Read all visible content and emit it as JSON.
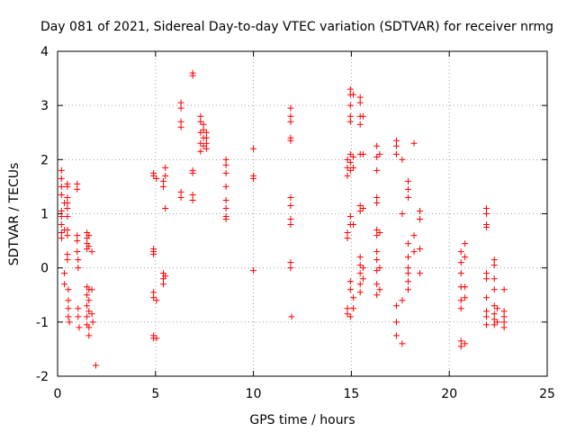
{
  "chart_data": {
    "type": "scatter",
    "title": "Day 081 of 2021, Sidereal Day-to-day VTEC variation (SDTVAR) for receiver nrmg",
    "xlabel": "GPS time / hours",
    "ylabel": "SDTVAR / TECUs",
    "xlim": [
      0,
      25
    ],
    "ylim": [
      -2,
      4
    ],
    "xticks": [
      "0",
      "5",
      "10",
      "15",
      "20",
      "25"
    ],
    "yticks": [
      "-2",
      "-1",
      "0",
      "1",
      "2",
      "3",
      "4"
    ],
    "grid": true,
    "marker": "+",
    "color": "#ff0000",
    "series": [
      {
        "name": "SDTVAR",
        "points": [
          [
            0.2,
            1.8
          ],
          [
            0.2,
            1.65
          ],
          [
            0.2,
            1.5
          ],
          [
            0.2,
            1.35
          ],
          [
            0.2,
            1.05
          ],
          [
            0.2,
            0.95
          ],
          [
            0.2,
            0.8
          ],
          [
            0.2,
            0.65
          ],
          [
            0.2,
            0.55
          ],
          [
            0.35,
            1.2
          ],
          [
            0.35,
            0.7
          ],
          [
            0.35,
            -0.1
          ],
          [
            0.35,
            -0.3
          ],
          [
            0.5,
            1.55
          ],
          [
            0.5,
            1.5
          ],
          [
            0.5,
            1.3
          ],
          [
            0.5,
            1.2
          ],
          [
            0.5,
            1.1
          ],
          [
            0.5,
            0.95
          ],
          [
            0.5,
            0.7
          ],
          [
            0.5,
            0.6
          ],
          [
            0.5,
            0.25
          ],
          [
            0.5,
            0.15
          ],
          [
            0.55,
            -0.4
          ],
          [
            0.55,
            -0.6
          ],
          [
            0.55,
            -0.75
          ],
          [
            0.55,
            -0.9
          ],
          [
            0.6,
            -1.0
          ],
          [
            1.0,
            1.55
          ],
          [
            1.0,
            1.45
          ],
          [
            1.0,
            0.6
          ],
          [
            1.0,
            0.5
          ],
          [
            1.0,
            0.3
          ],
          [
            1.05,
            0.15
          ],
          [
            1.05,
            0.0
          ],
          [
            1.05,
            -0.75
          ],
          [
            1.05,
            -0.9
          ],
          [
            1.1,
            -1.1
          ],
          [
            1.5,
            0.65
          ],
          [
            1.5,
            0.55
          ],
          [
            1.5,
            0.45
          ],
          [
            1.5,
            0.35
          ],
          [
            1.5,
            -0.35
          ],
          [
            1.5,
            -0.5
          ],
          [
            1.5,
            -0.7
          ],
          [
            1.5,
            -0.9
          ],
          [
            1.5,
            -1.05
          ],
          [
            1.6,
            0.6
          ],
          [
            1.6,
            0.4
          ],
          [
            1.6,
            -0.4
          ],
          [
            1.6,
            -0.6
          ],
          [
            1.6,
            -0.8
          ],
          [
            1.6,
            -1.1
          ],
          [
            1.6,
            -1.25
          ],
          [
            1.75,
            0.3
          ],
          [
            1.75,
            -0.4
          ],
          [
            1.75,
            -0.85
          ],
          [
            1.8,
            -1.0
          ],
          [
            1.95,
            -1.8
          ],
          [
            4.9,
            1.75
          ],
          [
            4.9,
            1.7
          ],
          [
            4.9,
            0.35
          ],
          [
            4.9,
            0.3
          ],
          [
            4.9,
            0.25
          ],
          [
            4.9,
            -0.45
          ],
          [
            4.9,
            -0.55
          ],
          [
            4.9,
            -1.25
          ],
          [
            4.9,
            -1.3
          ],
          [
            5.05,
            1.65
          ],
          [
            5.05,
            -0.6
          ],
          [
            5.05,
            -1.3
          ],
          [
            5.4,
            1.6
          ],
          [
            5.4,
            1.5
          ],
          [
            5.4,
            -0.1
          ],
          [
            5.4,
            -0.2
          ],
          [
            5.4,
            -0.3
          ],
          [
            5.5,
            1.85
          ],
          [
            5.5,
            1.7
          ],
          [
            5.5,
            1.1
          ],
          [
            5.5,
            -0.15
          ],
          [
            6.3,
            3.05
          ],
          [
            6.3,
            2.95
          ],
          [
            6.3,
            2.7
          ],
          [
            6.3,
            2.6
          ],
          [
            6.3,
            1.4
          ],
          [
            6.3,
            1.3
          ],
          [
            6.9,
            3.6
          ],
          [
            6.9,
            3.55
          ],
          [
            6.9,
            1.8
          ],
          [
            6.9,
            1.75
          ],
          [
            6.9,
            1.35
          ],
          [
            6.9,
            1.25
          ],
          [
            7.3,
            2.8
          ],
          [
            7.3,
            2.7
          ],
          [
            7.3,
            2.5
          ],
          [
            7.3,
            2.3
          ],
          [
            7.3,
            2.15
          ],
          [
            7.45,
            2.65
          ],
          [
            7.45,
            2.55
          ],
          [
            7.45,
            2.4
          ],
          [
            7.45,
            2.25
          ],
          [
            7.6,
            2.5
          ],
          [
            7.6,
            2.4
          ],
          [
            7.6,
            2.3
          ],
          [
            7.6,
            2.2
          ],
          [
            8.6,
            2.0
          ],
          [
            8.6,
            1.9
          ],
          [
            8.6,
            1.75
          ],
          [
            8.6,
            1.5
          ],
          [
            8.6,
            1.25
          ],
          [
            8.6,
            1.1
          ],
          [
            8.6,
            0.95
          ],
          [
            8.6,
            0.9
          ],
          [
            10.0,
            2.2
          ],
          [
            10.0,
            1.7
          ],
          [
            10.0,
            1.65
          ],
          [
            10.0,
            -0.05
          ],
          [
            11.9,
            2.95
          ],
          [
            11.9,
            2.8
          ],
          [
            11.9,
            2.7
          ],
          [
            11.9,
            2.4
          ],
          [
            11.9,
            2.35
          ],
          [
            11.9,
            1.3
          ],
          [
            11.9,
            1.15
          ],
          [
            11.9,
            0.9
          ],
          [
            11.9,
            0.8
          ],
          [
            11.9,
            0.1
          ],
          [
            11.9,
            0.0
          ],
          [
            11.95,
            -0.9
          ],
          [
            14.8,
            2.0
          ],
          [
            14.8,
            1.85
          ],
          [
            14.8,
            1.7
          ],
          [
            14.8,
            0.65
          ],
          [
            14.8,
            0.55
          ],
          [
            14.8,
            -0.75
          ],
          [
            14.8,
            -0.85
          ],
          [
            14.95,
            3.3
          ],
          [
            14.95,
            3.2
          ],
          [
            14.95,
            3.0
          ],
          [
            14.95,
            2.8
          ],
          [
            14.95,
            2.7
          ],
          [
            14.95,
            2.1
          ],
          [
            14.95,
            1.95
          ],
          [
            14.95,
            1.8
          ],
          [
            14.95,
            0.95
          ],
          [
            14.95,
            0.8
          ],
          [
            14.95,
            -0.25
          ],
          [
            14.95,
            -0.4
          ],
          [
            14.95,
            -0.9
          ],
          [
            15.1,
            3.2
          ],
          [
            15.1,
            2.05
          ],
          [
            15.1,
            1.85
          ],
          [
            15.1,
            0.8
          ],
          [
            15.1,
            -0.55
          ],
          [
            15.1,
            -0.75
          ],
          [
            15.45,
            3.15
          ],
          [
            15.45,
            3.05
          ],
          [
            15.45,
            2.8
          ],
          [
            15.45,
            2.65
          ],
          [
            15.45,
            2.1
          ],
          [
            15.45,
            1.15
          ],
          [
            15.45,
            1.05
          ],
          [
            15.45,
            0.2
          ],
          [
            15.45,
            0.05
          ],
          [
            15.45,
            -0.1
          ],
          [
            15.45,
            -0.3
          ],
          [
            15.45,
            -0.45
          ],
          [
            15.6,
            2.8
          ],
          [
            15.6,
            2.1
          ],
          [
            15.6,
            1.1
          ],
          [
            15.6,
            0.0
          ],
          [
            15.6,
            -0.2
          ],
          [
            16.3,
            2.25
          ],
          [
            16.3,
            2.05
          ],
          [
            16.3,
            1.8
          ],
          [
            16.3,
            1.3
          ],
          [
            16.3,
            1.2
          ],
          [
            16.3,
            0.7
          ],
          [
            16.3,
            0.6
          ],
          [
            16.3,
            0.3
          ],
          [
            16.3,
            0.15
          ],
          [
            16.3,
            -0.05
          ],
          [
            16.3,
            -0.3
          ],
          [
            16.3,
            -0.5
          ],
          [
            16.45,
            2.1
          ],
          [
            16.45,
            0.65
          ],
          [
            16.45,
            0.0
          ],
          [
            16.45,
            -0.4
          ],
          [
            17.3,
            2.35
          ],
          [
            17.3,
            2.25
          ],
          [
            17.3,
            2.1
          ],
          [
            17.3,
            -0.7
          ],
          [
            17.3,
            -1.0
          ],
          [
            17.3,
            -1.25
          ],
          [
            17.6,
            2.0
          ],
          [
            17.6,
            1.0
          ],
          [
            17.6,
            -1.4
          ],
          [
            17.9,
            1.6
          ],
          [
            17.9,
            1.45
          ],
          [
            17.9,
            1.3
          ],
          [
            17.9,
            0.45
          ],
          [
            17.9,
            0.2
          ],
          [
            17.9,
            0.0
          ],
          [
            17.9,
            -0.1
          ],
          [
            17.9,
            -0.25
          ],
          [
            17.9,
            -0.4
          ],
          [
            17.6,
            -0.6
          ],
          [
            18.2,
            2.3
          ],
          [
            18.2,
            0.6
          ],
          [
            18.2,
            0.3
          ],
          [
            18.5,
            1.05
          ],
          [
            18.5,
            0.9
          ],
          [
            18.5,
            0.35
          ],
          [
            18.5,
            -0.1
          ],
          [
            20.6,
            0.3
          ],
          [
            20.6,
            0.1
          ],
          [
            20.6,
            -0.1
          ],
          [
            20.6,
            -0.35
          ],
          [
            20.6,
            -0.6
          ],
          [
            20.6,
            -0.75
          ],
          [
            20.6,
            -1.35
          ],
          [
            20.6,
            -1.45
          ],
          [
            20.8,
            0.45
          ],
          [
            20.8,
            0.2
          ],
          [
            20.8,
            -0.35
          ],
          [
            20.8,
            -0.55
          ],
          [
            20.8,
            -1.4
          ],
          [
            21.9,
            1.1
          ],
          [
            21.9,
            1.0
          ],
          [
            21.9,
            0.8
          ],
          [
            21.9,
            0.75
          ],
          [
            21.9,
            -0.1
          ],
          [
            21.9,
            -0.2
          ],
          [
            21.9,
            -0.55
          ],
          [
            21.9,
            -0.8
          ],
          [
            21.9,
            -0.9
          ],
          [
            21.9,
            -1.05
          ],
          [
            22.3,
            0.15
          ],
          [
            22.3,
            0.05
          ],
          [
            22.3,
            -0.2
          ],
          [
            22.3,
            -0.4
          ],
          [
            22.3,
            -0.7
          ],
          [
            22.3,
            -0.85
          ],
          [
            22.3,
            -0.95
          ],
          [
            22.3,
            -1.05
          ],
          [
            22.45,
            -0.75
          ],
          [
            22.45,
            -1.0
          ],
          [
            22.8,
            -0.4
          ],
          [
            22.8,
            -0.8
          ],
          [
            22.8,
            -0.9
          ],
          [
            22.8,
            -1.0
          ],
          [
            22.8,
            -1.1
          ]
        ]
      }
    ]
  }
}
